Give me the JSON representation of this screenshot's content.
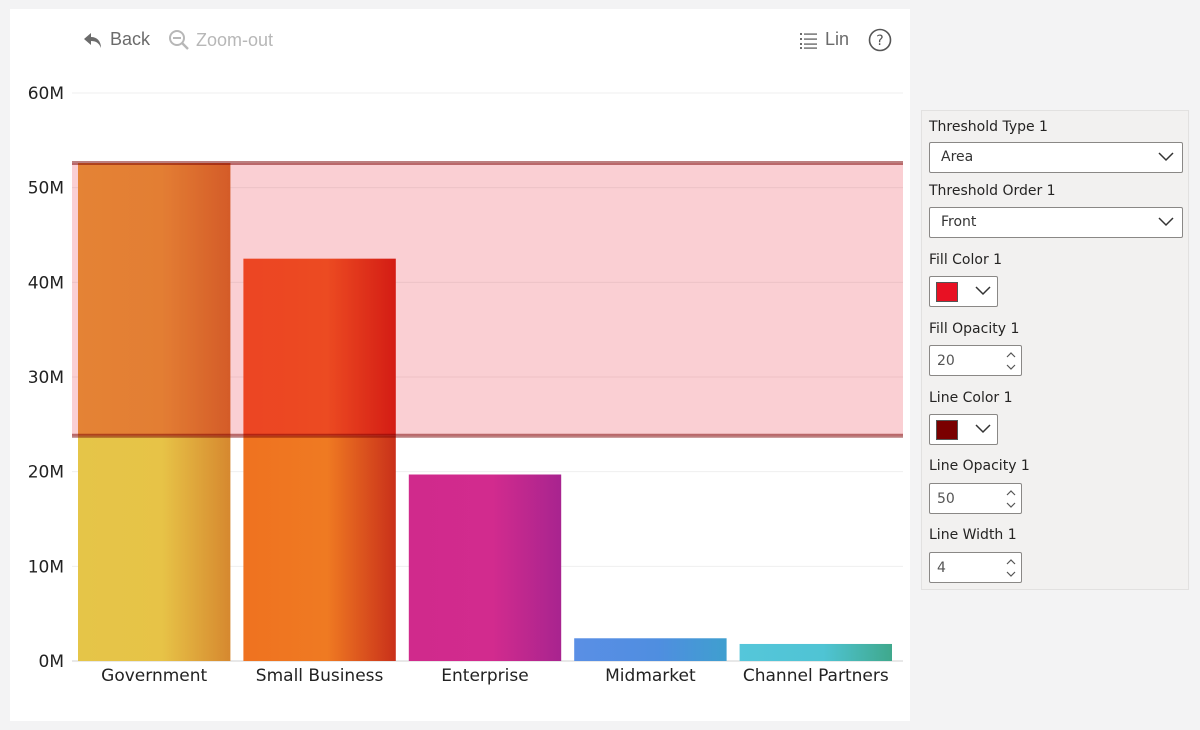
{
  "toolbar": {
    "back_label": "Back",
    "zoom_out_label": "Zoom-out",
    "scale_label": "Lin",
    "help_symbol": "?"
  },
  "chart_data": {
    "type": "bar",
    "categories": [
      "Government",
      "Small Business",
      "Enterprise",
      "Midmarket",
      "Channel Partners"
    ],
    "values": [
      52600000,
      42500000,
      19700000,
      2400000,
      1800000
    ],
    "ylim": [
      0,
      60000000
    ],
    "yticks": [
      0,
      10000000,
      20000000,
      30000000,
      40000000,
      50000000,
      60000000
    ],
    "ytick_labels": [
      "0M",
      "10M",
      "20M",
      "30M",
      "40M",
      "50M",
      "60M"
    ],
    "grid": true,
    "bar_gradients": [
      {
        "top": [
          "#e4a03a",
          "#e39a38",
          "#d06f2a"
        ],
        "bottom": [
          "#e5c548",
          "#e7c347",
          "#d6882f"
        ]
      },
      {
        "top": [
          "#ee5323",
          "#ee5a22",
          "#cf2011"
        ],
        "bottom": [
          "#ef7220",
          "#ef7a22",
          "#c9301a"
        ]
      },
      {
        "top": [
          "#d02a8c",
          "#d22b8e",
          "#a8248f"
        ],
        "bottom": [
          "#d02a8c",
          "#d22b8e",
          "#a8248f"
        ]
      },
      {
        "top": [
          "#5a8fe5",
          "#4f8ee0",
          "#3f9fcf"
        ],
        "bottom": [
          "#5a8fe5",
          "#4f8ee0",
          "#3f9fcf"
        ]
      },
      {
        "top": [
          "#55c6da",
          "#4fc4d4",
          "#3fa88c"
        ],
        "bottom": [
          "#55c6da",
          "#4fc4d4",
          "#3fa88c"
        ]
      }
    ],
    "threshold": {
      "lower": 23800000,
      "upper": 52600000,
      "fill_color": "#e81123",
      "fill_opacity": 20,
      "line_color": "#7a0000",
      "line_opacity": 50,
      "line_width": 4
    }
  },
  "format_panel": {
    "threshold_type": {
      "label": "Threshold Type 1",
      "value": "Area"
    },
    "threshold_order": {
      "label": "Threshold Order 1",
      "value": "Front"
    },
    "fill_color": {
      "label": "Fill Color 1",
      "color": "#e81123"
    },
    "fill_opacity": {
      "label": "Fill Opacity 1",
      "value": "20"
    },
    "line_color": {
      "label": "Line Color 1",
      "color": "#7a0000"
    },
    "line_opacity": {
      "label": "Line Opacity 1",
      "value": "50"
    },
    "line_width": {
      "label": "Line Width 1",
      "value": "4"
    }
  }
}
